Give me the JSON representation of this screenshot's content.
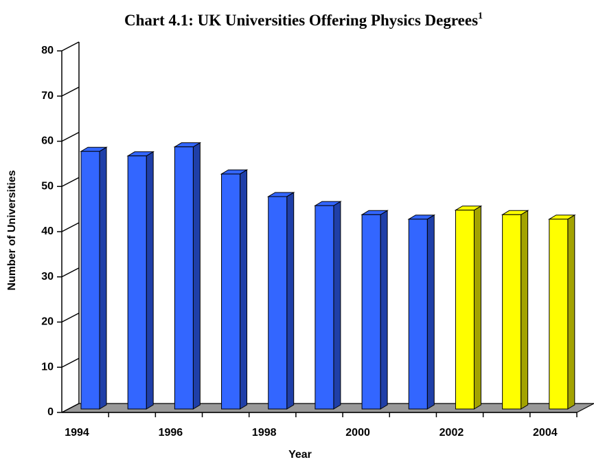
{
  "chart_data": {
    "type": "bar3d",
    "title": "Chart 4.1: UK Universities Offering Physics Degrees",
    "title_footnote_mark": "1",
    "x_label": "Year",
    "y_label": "Number of Universities",
    "categories": [
      "1994",
      null,
      "1996",
      null,
      "1998",
      null,
      "2000",
      null,
      "2002",
      null,
      "2004"
    ],
    "values": [
      57,
      56,
      58,
      52,
      47,
      45,
      43,
      42,
      44,
      43,
      42
    ],
    "colors": [
      "#3366ff",
      "#3366ff",
      "#3366ff",
      "#3366ff",
      "#3366ff",
      "#3366ff",
      "#3366ff",
      "#3366ff",
      "#ffff00",
      "#ffff00",
      "#ffff00"
    ],
    "ylim": [
      0,
      80
    ],
    "yticks": [
      0,
      10,
      20,
      30,
      40,
      50,
      60,
      70,
      80
    ],
    "grid": false,
    "floor_color": "#999999"
  }
}
